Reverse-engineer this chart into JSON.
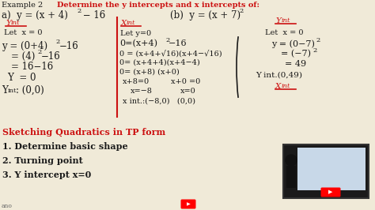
{
  "bg_color": "#f0ead8",
  "red": "#cc1111",
  "black": "#1a1a1a",
  "figsize": [
    4.74,
    2.66
  ],
  "dpi": 100,
  "bottom_lines": [
    [
      "Sketching Quadratics in TP form",
      "red",
      true
    ],
    [
      "1. Determine basic shape",
      "black",
      true
    ],
    [
      "2. Turning point",
      "black",
      true
    ],
    [
      "3. Y intercept x=0",
      "black",
      true
    ]
  ]
}
